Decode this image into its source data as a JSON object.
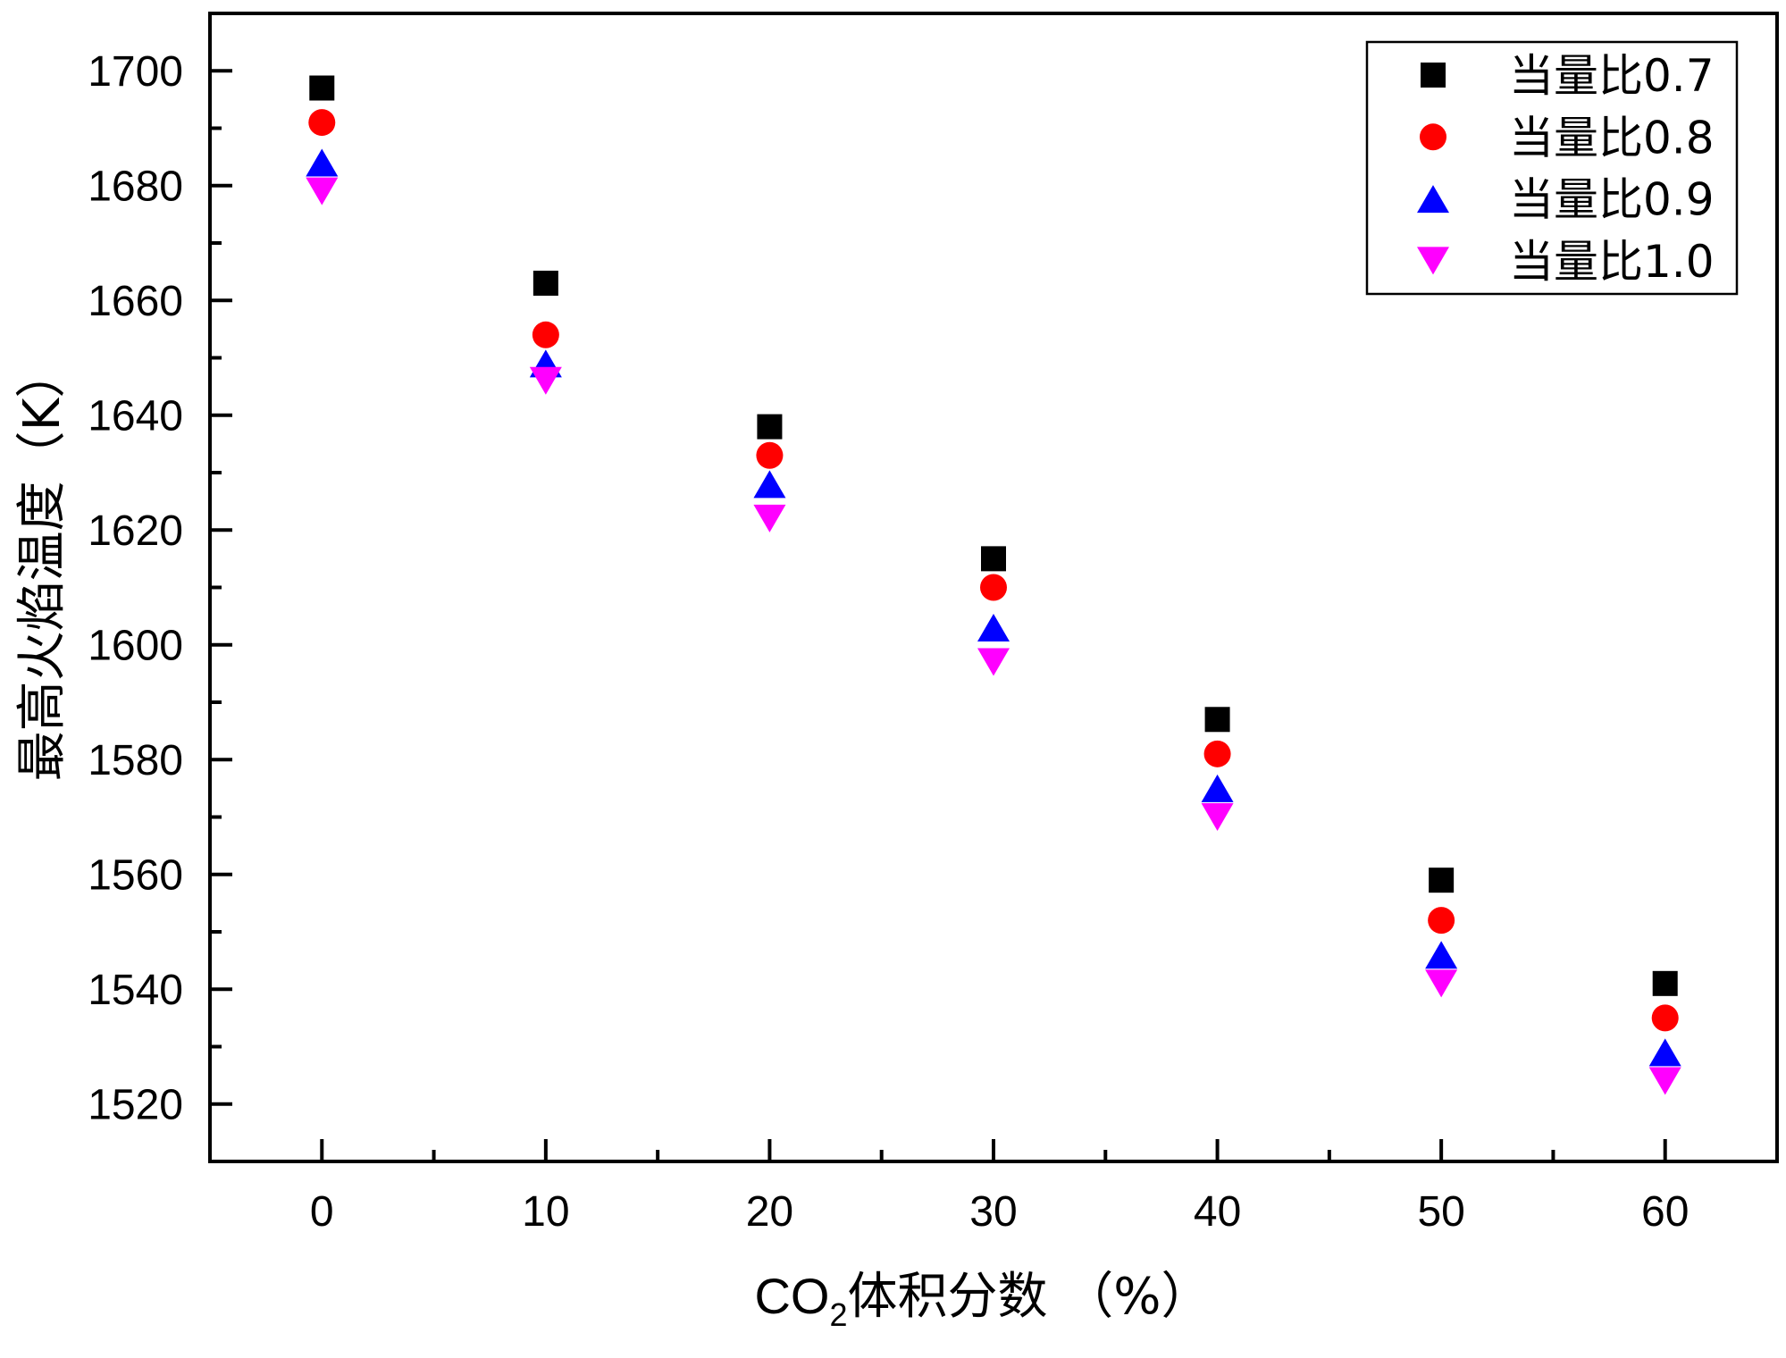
{
  "chart_data": {
    "type": "scatter",
    "title": "",
    "xlabel": {
      "main": "CO",
      "sub": "2",
      "rest": "体积分数 （%）"
    },
    "ylabel": "最高火焰温度（K）",
    "xlim": [
      -5,
      65
    ],
    "ylim": [
      1510,
      1710
    ],
    "xticks": [
      0,
      10,
      20,
      30,
      40,
      50,
      60
    ],
    "yticks": [
      1520,
      1540,
      1560,
      1580,
      1600,
      1620,
      1640,
      1660,
      1680,
      1700
    ],
    "x_minor_step": 5,
    "y_minor_step": 10,
    "grid": false,
    "legend_position": "top-right",
    "x": [
      0,
      10,
      20,
      30,
      40,
      50,
      60
    ],
    "series": [
      {
        "name": "当量比0.7",
        "marker": "square",
        "color": "#000000",
        "values": [
          1697,
          1663,
          1638,
          1615,
          1587,
          1559,
          1541
        ]
      },
      {
        "name": "当量比0.8",
        "marker": "circle",
        "color": "#ff0000",
        "values": [
          1691,
          1654,
          1633,
          1610,
          1581,
          1552,
          1535
        ]
      },
      {
        "name": "当量比0.9",
        "marker": "triangle-up",
        "color": "#0000ff",
        "values": [
          1684,
          1649,
          1628,
          1603,
          1575,
          1546,
          1529
        ]
      },
      {
        "name": "当量比1.0",
        "marker": "triangle-down",
        "color": "#ff00ff",
        "values": [
          1679,
          1646,
          1622,
          1597,
          1570,
          1541,
          1524
        ]
      }
    ]
  }
}
